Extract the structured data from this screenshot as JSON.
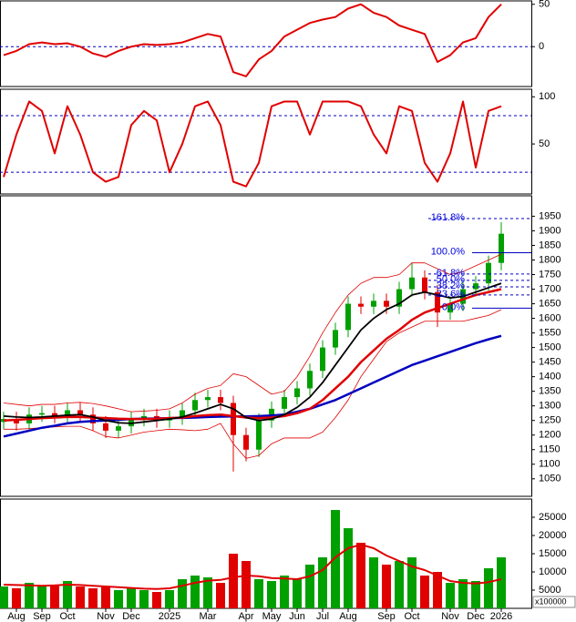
{
  "chart_data": [
    {
      "type": "line",
      "ylim": [
        -47,
        54
      ],
      "yticks": [
        0,
        50
      ],
      "levels": [
        0
      ],
      "series": [
        {
          "color": "#e00000",
          "values": [
            -10,
            -5,
            3,
            5,
            3,
            4,
            0,
            -8,
            -12,
            -5,
            0,
            3,
            2,
            3,
            5,
            10,
            15,
            12,
            -30,
            -35,
            -15,
            -5,
            12,
            20,
            28,
            32,
            35,
            45,
            50,
            40,
            35,
            25,
            20,
            15,
            -18,
            -10,
            5,
            10,
            35,
            50
          ]
        }
      ]
    },
    {
      "type": "line",
      "ylim": [
        -3,
        108
      ],
      "yticks": [
        50,
        100
      ],
      "levels": [
        20,
        80
      ],
      "series": [
        {
          "color": "#e00000",
          "values": [
            15,
            60,
            95,
            85,
            40,
            90,
            60,
            20,
            10,
            15,
            70,
            85,
            75,
            20,
            50,
            90,
            95,
            70,
            10,
            5,
            30,
            90,
            95,
            95,
            60,
            95,
            95,
            95,
            90,
            60,
            40,
            90,
            85,
            30,
            10,
            40,
            95,
            25,
            85,
            90
          ]
        }
      ]
    },
    {
      "type": "candlestick",
      "ylim": [
        990,
        2020
      ],
      "yticks": [
        1050,
        1100,
        1150,
        1200,
        1250,
        1300,
        1350,
        1400,
        1450,
        1500,
        1550,
        1600,
        1650,
        1700,
        1750,
        1800,
        1850,
        1900,
        1950
      ],
      "up_color": "#00a000",
      "down_color": "#e00000",
      "open": [
        1245,
        1255,
        1240,
        1270,
        1275,
        1265,
        1285,
        1270,
        1240,
        1215,
        1230,
        1255,
        1265,
        1250,
        1260,
        1285,
        1320,
        1330,
        1310,
        1200,
        1150,
        1250,
        1290,
        1330,
        1360,
        1420,
        1500,
        1560,
        1650,
        1640,
        1660,
        1640,
        1700,
        1740,
        1690,
        1620,
        1650,
        1700,
        1720,
        1790
      ],
      "high": [
        1280,
        1280,
        1295,
        1300,
        1300,
        1310,
        1310,
        1295,
        1265,
        1255,
        1280,
        1290,
        1290,
        1285,
        1310,
        1345,
        1355,
        1355,
        1335,
        1225,
        1275,
        1315,
        1355,
        1385,
        1445,
        1525,
        1585,
        1675,
        1675,
        1685,
        1685,
        1725,
        1790,
        1765,
        1715,
        1675,
        1725,
        1745,
        1815,
        1930
      ],
      "low": [
        1220,
        1215,
        1215,
        1245,
        1240,
        1240,
        1245,
        1215,
        1190,
        1190,
        1205,
        1230,
        1225,
        1225,
        1235,
        1260,
        1295,
        1285,
        1075,
        1110,
        1125,
        1225,
        1265,
        1305,
        1335,
        1395,
        1475,
        1535,
        1615,
        1615,
        1615,
        1615,
        1675,
        1665,
        1570,
        1595,
        1625,
        1675,
        1695,
        1765
      ],
      "close": [
        1255,
        1240,
        1270,
        1275,
        1265,
        1285,
        1270,
        1240,
        1215,
        1230,
        1255,
        1265,
        1250,
        1260,
        1285,
        1320,
        1330,
        1310,
        1200,
        1150,
        1250,
        1290,
        1330,
        1360,
        1420,
        1500,
        1560,
        1650,
        1640,
        1660,
        1640,
        1700,
        1740,
        1690,
        1620,
        1650,
        1700,
        1720,
        1790,
        1890
      ],
      "lines": [
        {
          "color": "#e00000",
          "width": 0.8,
          "values": [
            1310,
            1305,
            1300,
            1305,
            1305,
            1310,
            1312,
            1308,
            1300,
            1290,
            1280,
            1282,
            1285,
            1290,
            1310,
            1340,
            1360,
            1370,
            1410,
            1400,
            1370,
            1340,
            1350,
            1400,
            1470,
            1550,
            1620,
            1680,
            1720,
            1740,
            1740,
            1750,
            1790,
            1790,
            1770,
            1750,
            1760,
            1780,
            1800,
            1820
          ]
        },
        {
          "color": "#e00000",
          "width": 0.8,
          "values": [
            1220,
            1220,
            1222,
            1225,
            1228,
            1230,
            1230,
            1215,
            1195,
            1190,
            1200,
            1210,
            1215,
            1220,
            1218,
            1215,
            1220,
            1240,
            1170,
            1120,
            1130,
            1170,
            1190,
            1190,
            1190,
            1210,
            1260,
            1320,
            1400,
            1460,
            1520,
            1550,
            1570,
            1590,
            1590,
            1590,
            1590,
            1600,
            1610,
            1630
          ]
        },
        {
          "color": "#0000c0",
          "width": 2.5,
          "values": [
            1195,
            1205,
            1215,
            1225,
            1232,
            1240,
            1245,
            1248,
            1250,
            1252,
            1255,
            1256,
            1257,
            1258,
            1259,
            1260,
            1262,
            1263,
            1264,
            1264,
            1265,
            1267,
            1270,
            1280,
            1290,
            1305,
            1320,
            1340,
            1360,
            1380,
            1400,
            1420,
            1440,
            1455,
            1470,
            1485,
            1500,
            1515,
            1528,
            1540
          ]
        },
        {
          "color": "#e00000",
          "width": 2.5,
          "values": [
            1250,
            1252,
            1255,
            1258,
            1260,
            1262,
            1262,
            1260,
            1258,
            1256,
            1255,
            1255,
            1256,
            1258,
            1260,
            1265,
            1268,
            1270,
            1265,
            1260,
            1258,
            1260,
            1265,
            1275,
            1290,
            1320,
            1360,
            1400,
            1450,
            1490,
            1530,
            1560,
            1595,
            1620,
            1635,
            1650,
            1665,
            1680,
            1690,
            1700
          ]
        },
        {
          "color": "#000000",
          "width": 1.8,
          "values": [
            1265,
            1262,
            1260,
            1262,
            1265,
            1268,
            1270,
            1262,
            1250,
            1242,
            1240,
            1245,
            1250,
            1255,
            1262,
            1275,
            1290,
            1305,
            1290,
            1260,
            1250,
            1255,
            1270,
            1295,
            1330,
            1380,
            1440,
            1500,
            1560,
            1600,
            1630,
            1650,
            1680,
            1690,
            1680,
            1670,
            1675,
            1690,
            1705,
            1720
          ]
        }
      ],
      "fib": [
        {
          "label": "161.8%",
          "value": 1942,
          "solid": false
        },
        {
          "label": "100.0%",
          "value": 1825,
          "solid": true
        },
        {
          "label": "61.8%",
          "value": 1752,
          "solid": false
        },
        {
          "label": "50.0%",
          "value": 1730,
          "solid": false
        },
        {
          "label": "38.2%",
          "value": 1708,
          "solid": false
        },
        {
          "label": "23.6%",
          "value": 1680,
          "solid": false
        },
        {
          "label": "0.0%",
          "value": 1635,
          "solid": true
        }
      ]
    },
    {
      "type": "bar",
      "ylim": [
        0,
        30000
      ],
      "yticks": [
        5000,
        10000,
        15000,
        20000,
        25000
      ],
      "unit_label": "x100000",
      "color": "#00a000",
      "categories": [
        null,
        "Aug",
        null,
        "Sep",
        null,
        "Oct",
        null,
        null,
        "Nov",
        null,
        "Dec",
        null,
        null,
        "2025",
        null,
        null,
        "Mar",
        null,
        null,
        "Apr",
        null,
        "May",
        null,
        "Jun",
        null,
        "Jul",
        null,
        "Aug",
        null,
        null,
        "Sep",
        null,
        "Oct",
        null,
        null,
        "Nov",
        null,
        "Dec",
        null,
        "2026"
      ],
      "values": [
        6000,
        5500,
        7000,
        6000,
        6500,
        7500,
        6000,
        5500,
        6000,
        5000,
        5500,
        5000,
        4500,
        5000,
        8000,
        9000,
        8500,
        7000,
        15000,
        13000,
        8000,
        7500,
        9000,
        8000,
        12000,
        14000,
        27000,
        22000,
        18000,
        14000,
        12000,
        13000,
        14000,
        9000,
        10000,
        7000,
        8000,
        7500,
        11000,
        14000
      ],
      "ma": {
        "color": "#e00000",
        "values": [
          6500,
          6400,
          6300,
          6200,
          6300,
          6500,
          6400,
          6200,
          6000,
          5800,
          5600,
          5400,
          5300,
          5500,
          6200,
          7000,
          7600,
          7800,
          8500,
          9000,
          8800,
          8300,
          8200,
          8000,
          8800,
          10500,
          14000,
          16500,
          17500,
          16500,
          14500,
          13000,
          11500,
          10500,
          9000,
          7500,
          7000,
          6800,
          7200,
          8000
        ]
      }
    }
  ]
}
